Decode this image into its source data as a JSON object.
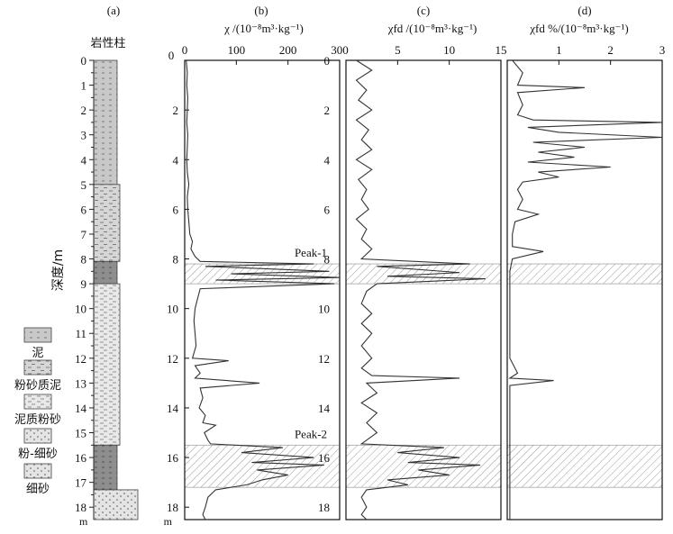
{
  "chart_data": [
    {
      "panel_id": "(a)",
      "type": "table",
      "title": "岩性柱",
      "ylabel": "深度/m",
      "unit": "m",
      "ylim": [
        0,
        18.5
      ],
      "yticks": [
        0,
        1,
        2,
        3,
        4,
        5,
        6,
        7,
        8,
        9,
        10,
        11,
        12,
        13,
        14,
        15,
        16,
        17,
        18
      ],
      "layers": [
        {
          "top": 0,
          "bottom": 5.0,
          "lith": "泥"
        },
        {
          "top": 5.0,
          "bottom": 8.1,
          "lith": "粉砂质泥"
        },
        {
          "top": 8.1,
          "bottom": 9.0,
          "lith": "泥"
        },
        {
          "top": 9.0,
          "bottom": 15.5,
          "lith": "泥质粉砂"
        },
        {
          "top": 15.5,
          "bottom": 17.3,
          "lith": "泥"
        },
        {
          "top": 17.3,
          "bottom": 18.5,
          "lith": "细砂"
        }
      ],
      "legend": [
        {
          "key": "泥",
          "label": "泥"
        },
        {
          "key": "粉砂质泥",
          "label": "粉砂质泥"
        },
        {
          "key": "泥质粉砂",
          "label": "泥质粉砂"
        },
        {
          "key": "粉-细砂",
          "label": "粉-细砂"
        },
        {
          "key": "细砂",
          "label": "细砂"
        }
      ]
    },
    {
      "panel_id": "(b)",
      "type": "line",
      "xlabel": "χ /(10⁻⁸m³·kg⁻¹)",
      "xlim": [
        0,
        300
      ],
      "xticks": [
        0,
        100,
        200,
        300
      ],
      "ylim": [
        0,
        18.5
      ],
      "yticks": [
        0,
        2,
        4,
        6,
        8,
        10,
        12,
        14,
        16,
        18
      ],
      "annotations": [
        {
          "text": "Peak-1",
          "depth_range": [
            8.2,
            9.0
          ]
        },
        {
          "text": "Peak-2",
          "depth_range": [
            15.5,
            17.2
          ]
        }
      ],
      "series": [
        {
          "points": [
            [
              3,
              0
            ],
            [
              5,
              0.5
            ],
            [
              4,
              1
            ],
            [
              6,
              1.5
            ],
            [
              5,
              2
            ],
            [
              4,
              2.5
            ],
            [
              6,
              3
            ],
            [
              5,
              3.5
            ],
            [
              4,
              4
            ],
            [
              5,
              4.5
            ],
            [
              8,
              5
            ],
            [
              5,
              5.5
            ],
            [
              6,
              6
            ],
            [
              8,
              6.5
            ],
            [
              10,
              7
            ],
            [
              15,
              7.3
            ],
            [
              12,
              7.6
            ],
            [
              20,
              7.9
            ],
            [
              30,
              8.1
            ],
            [
              250,
              8.2
            ],
            [
              40,
              8.3
            ],
            [
              280,
              8.5
            ],
            [
              90,
              8.6
            ],
            [
              300,
              8.75
            ],
            [
              60,
              8.85
            ],
            [
              290,
              9.0
            ],
            [
              30,
              9.2
            ],
            [
              25,
              9.6
            ],
            [
              20,
              10
            ],
            [
              18,
              10.5
            ],
            [
              20,
              11
            ],
            [
              22,
              11.5
            ],
            [
              15,
              12
            ],
            [
              85,
              12.1
            ],
            [
              20,
              12.3
            ],
            [
              30,
              12.6
            ],
            [
              20,
              12.8
            ],
            [
              145,
              13.0
            ],
            [
              30,
              13.2
            ],
            [
              35,
              13.6
            ],
            [
              28,
              14
            ],
            [
              40,
              14.3
            ],
            [
              35,
              14.6
            ],
            [
              60,
              14.7
            ],
            [
              38,
              15
            ],
            [
              45,
              15.3
            ],
            [
              50,
              15.45
            ],
            [
              190,
              15.6
            ],
            [
              110,
              15.8
            ],
            [
              250,
              16.0
            ],
            [
              130,
              16.2
            ],
            [
              270,
              16.3
            ],
            [
              140,
              16.5
            ],
            [
              200,
              16.7
            ],
            [
              150,
              16.9
            ],
            [
              120,
              17.1
            ],
            [
              60,
              17.3
            ],
            [
              45,
              17.6
            ],
            [
              40,
              18
            ],
            [
              35,
              18.3
            ],
            [
              40,
              18.5
            ]
          ]
        }
      ]
    },
    {
      "panel_id": "(c)",
      "type": "line",
      "xlabel": "χfd /(10⁻⁸m³·kg⁻¹)",
      "xlim": [
        0,
        15
      ],
      "xticks": [
        5,
        10,
        15
      ],
      "ylim": [
        0,
        18.5
      ],
      "yticks": [
        0,
        2,
        4,
        6,
        8,
        10,
        12,
        14,
        16,
        18
      ],
      "series": [
        {
          "points": [
            [
              1,
              0
            ],
            [
              2.5,
              0.4
            ],
            [
              1,
              0.8
            ],
            [
              2,
              1.2
            ],
            [
              1.2,
              1.6
            ],
            [
              2.5,
              2
            ],
            [
              1,
              2.4
            ],
            [
              2.2,
              2.8
            ],
            [
              1.5,
              3.2
            ],
            [
              2.5,
              3.6
            ],
            [
              1,
              4
            ],
            [
              2.5,
              4.4
            ],
            [
              1.2,
              4.8
            ],
            [
              2,
              5.2
            ],
            [
              1.5,
              5.6
            ],
            [
              2.2,
              6
            ],
            [
              1,
              6.4
            ],
            [
              2,
              6.8
            ],
            [
              1.5,
              7.2
            ],
            [
              2.5,
              7.6
            ],
            [
              1.5,
              8
            ],
            [
              12,
              8.2
            ],
            [
              3,
              8.3
            ],
            [
              11,
              8.55
            ],
            [
              4,
              8.7
            ],
            [
              13.5,
              8.8
            ],
            [
              3,
              9.0
            ],
            [
              2,
              9.3
            ],
            [
              1.5,
              9.8
            ],
            [
              2.5,
              10.2
            ],
            [
              1.5,
              10.6
            ],
            [
              2.5,
              11
            ],
            [
              1.5,
              11.5
            ],
            [
              2.5,
              12
            ],
            [
              1.5,
              12.4
            ],
            [
              2.5,
              12.7
            ],
            [
              11,
              12.8
            ],
            [
              2,
              13
            ],
            [
              3,
              13.4
            ],
            [
              1.5,
              13.8
            ],
            [
              3,
              14.2
            ],
            [
              2,
              14.6
            ],
            [
              3,
              15
            ],
            [
              2,
              15.3
            ],
            [
              1.5,
              15.45
            ],
            [
              9.5,
              15.6
            ],
            [
              5,
              15.8
            ],
            [
              11,
              16.0
            ],
            [
              6,
              16.2
            ],
            [
              13,
              16.3
            ],
            [
              7,
              16.5
            ],
            [
              10,
              16.7
            ],
            [
              4,
              16.9
            ],
            [
              6,
              17.1
            ],
            [
              2,
              17.3
            ],
            [
              1.5,
              17.6
            ],
            [
              2,
              18
            ],
            [
              1.5,
              18.3
            ],
            [
              2,
              18.5
            ]
          ]
        }
      ]
    },
    {
      "panel_id": "(d)",
      "type": "line",
      "xlabel": "χfd %/(10⁻⁸m³·kg⁻¹)",
      "xlim": [
        0,
        3
      ],
      "xticks": [
        1,
        2,
        3
      ],
      "ylim": [
        0,
        18.5
      ],
      "yticks": [
        0,
        2,
        4,
        6,
        8,
        10,
        12,
        14,
        16,
        18
      ],
      "series": [
        {
          "points": [
            [
              0.1,
              0
            ],
            [
              0.3,
              0.5
            ],
            [
              0.2,
              1
            ],
            [
              1.5,
              1.1
            ],
            [
              0.2,
              1.3
            ],
            [
              0.3,
              1.8
            ],
            [
              0.2,
              2.2
            ],
            [
              0.5,
              2.4
            ],
            [
              3,
              2.5
            ],
            [
              0.4,
              2.7
            ],
            [
              1,
              2.9
            ],
            [
              3,
              3.1
            ],
            [
              0.5,
              3.3
            ],
            [
              1.5,
              3.5
            ],
            [
              0.6,
              3.7
            ],
            [
              1.3,
              3.9
            ],
            [
              0.4,
              4.1
            ],
            [
              2,
              4.3
            ],
            [
              0.6,
              4.5
            ],
            [
              1,
              4.7
            ],
            [
              0.3,
              4.9
            ],
            [
              0.2,
              5.2
            ],
            [
              0.3,
              5.6
            ],
            [
              0.2,
              6.0
            ],
            [
              0.6,
              6.2
            ],
            [
              0.15,
              6.5
            ],
            [
              0.1,
              7
            ],
            [
              0.1,
              7.5
            ],
            [
              0.7,
              7.7
            ],
            [
              0.1,
              8
            ],
            [
              0.05,
              8.5
            ],
            [
              0.05,
              9
            ],
            [
              0.05,
              10
            ],
            [
              0.05,
              11
            ],
            [
              0.05,
              12
            ],
            [
              0.2,
              12.6
            ],
            [
              0.05,
              12.8
            ],
            [
              0.9,
              12.9
            ],
            [
              0.05,
              13.1
            ],
            [
              0.05,
              14
            ],
            [
              0.05,
              15
            ],
            [
              0.05,
              16
            ],
            [
              0.05,
              17
            ],
            [
              0.05,
              18
            ],
            [
              0.05,
              18.5
            ]
          ]
        }
      ]
    }
  ],
  "shared": {
    "panel_labels": [
      "(a)",
      "(b)",
      "(c)",
      "(d)"
    ],
    "ylabel": "深度/m",
    "y_unit": "m",
    "hatch_bands": [
      [
        8.2,
        9.0
      ],
      [
        15.5,
        17.2
      ]
    ]
  }
}
